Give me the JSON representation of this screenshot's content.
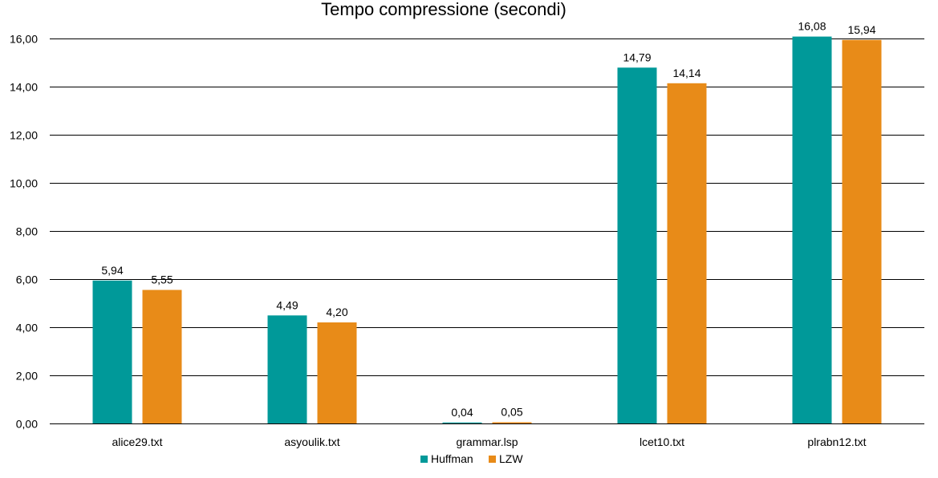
{
  "chart_data": {
    "type": "bar",
    "title": "Tempo compressione (secondi)",
    "xlabel": "",
    "ylabel": "",
    "ylim": [
      0,
      16
    ],
    "yticks": [
      "0,00",
      "2,00",
      "4,00",
      "6,00",
      "8,00",
      "10,00",
      "12,00",
      "14,00",
      "16,00"
    ],
    "ytick_values": [
      0,
      2,
      4,
      6,
      8,
      10,
      12,
      14,
      16
    ],
    "grid": true,
    "legend_position": "bottom",
    "categories": [
      "alice29.txt",
      "asyoulik.txt",
      "grammar.lsp",
      "lcet10.txt",
      "plrabn12.txt"
    ],
    "series": [
      {
        "name": "Huffman",
        "color": "#009999",
        "values": [
          5.94,
          4.49,
          0.04,
          14.79,
          16.08
        ],
        "labels": [
          "5,94",
          "4,49",
          "0,04",
          "14,79",
          "16,08"
        ]
      },
      {
        "name": "LZW",
        "color": "#E88B18",
        "values": [
          5.55,
          4.2,
          0.05,
          14.14,
          15.94
        ],
        "labels": [
          "5,55",
          "4,20",
          "0,05",
          "14,14",
          "15,94"
        ]
      }
    ]
  }
}
